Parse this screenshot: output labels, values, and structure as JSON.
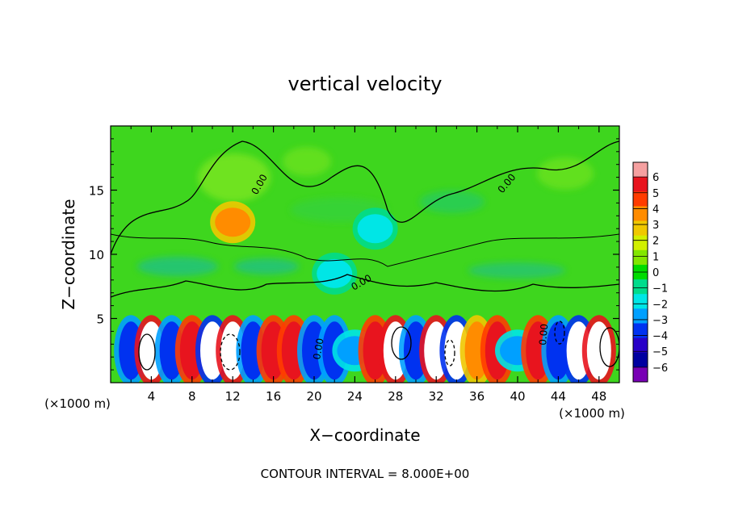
{
  "chart_data": {
    "type": "heatmap",
    "title": "vertical velocity",
    "xlabel": "X−coordinate",
    "ylabel": "Z−coordinate",
    "x_unit_left": "(×1000 m)",
    "x_unit_right": "(×1000 m)",
    "x_ticks": [
      "4",
      "8",
      "12",
      "16",
      "20",
      "24",
      "28",
      "32",
      "36",
      "40",
      "44",
      "48"
    ],
    "y_ticks": [
      "5",
      "10",
      "15"
    ],
    "xlim": [
      0,
      50
    ],
    "ylim": [
      0,
      20
    ],
    "contour_interval_text": "CONTOUR INTERVAL = 8.000E+00",
    "contour_label": "0.00",
    "colorbar": {
      "ticks": [
        "6",
        "5",
        "4",
        "3",
        "2",
        "1",
        "0",
        "−1",
        "−2",
        "−3",
        "−4",
        "−5",
        "−6"
      ],
      "colors": [
        "#f5a0a0",
        "#e8141e",
        "#ff3c00",
        "#ff8c00",
        "#f0c800",
        "#d2f000",
        "#82e600",
        "#00dc00",
        "#00dc8c",
        "#00e6e6",
        "#00a0ff",
        "#0032f0",
        "#2800c8",
        "#0000a0",
        "#7800b4"
      ]
    },
    "cells": [
      {
        "x": 2,
        "z": 2.5,
        "w": -5.2
      },
      {
        "x": 4,
        "z": 2.5,
        "w": 6.5
      },
      {
        "x": 6,
        "z": 2.5,
        "w": -5
      },
      {
        "x": 8,
        "z": 2.5,
        "w": 5.5
      },
      {
        "x": 10,
        "z": 2.5,
        "w": -5.5
      },
      {
        "x": 12,
        "z": 2.5,
        "w": 6.5
      },
      {
        "x": 14,
        "z": 2.5,
        "w": -5
      },
      {
        "x": 16,
        "z": 2.5,
        "w": 5
      },
      {
        "x": 18,
        "z": 2.5,
        "w": 5.5
      },
      {
        "x": 20,
        "z": 2.5,
        "w": -5
      },
      {
        "x": 22,
        "z": 2.5,
        "w": -4.5
      },
      {
        "x": 24,
        "z": 2.5,
        "w": -3
      },
      {
        "x": 26,
        "z": 2.5,
        "w": 5
      },
      {
        "x": 28,
        "z": 2.5,
        "w": 6.5
      },
      {
        "x": 30,
        "z": 2.5,
        "w": -5
      },
      {
        "x": 32,
        "z": 2.5,
        "w": 6
      },
      {
        "x": 34,
        "z": 2.5,
        "w": -5.5
      },
      {
        "x": 36,
        "z": 2.5,
        "w": 4
      },
      {
        "x": 38,
        "z": 2.5,
        "w": 5
      },
      {
        "x": 40,
        "z": 2.5,
        "w": -3
      },
      {
        "x": 42,
        "z": 2.5,
        "w": 4.5
      },
      {
        "x": 44,
        "z": 2.5,
        "w": -5
      },
      {
        "x": 46,
        "z": 2.5,
        "w": -5.5
      },
      {
        "x": 48,
        "z": 2.5,
        "w": 6.5
      },
      {
        "x": 12,
        "z": 12.5,
        "w": 3
      },
      {
        "x": 22,
        "z": 8.5,
        "w": -1.5
      },
      {
        "x": 26,
        "z": 12,
        "w": -1
      }
    ]
  }
}
